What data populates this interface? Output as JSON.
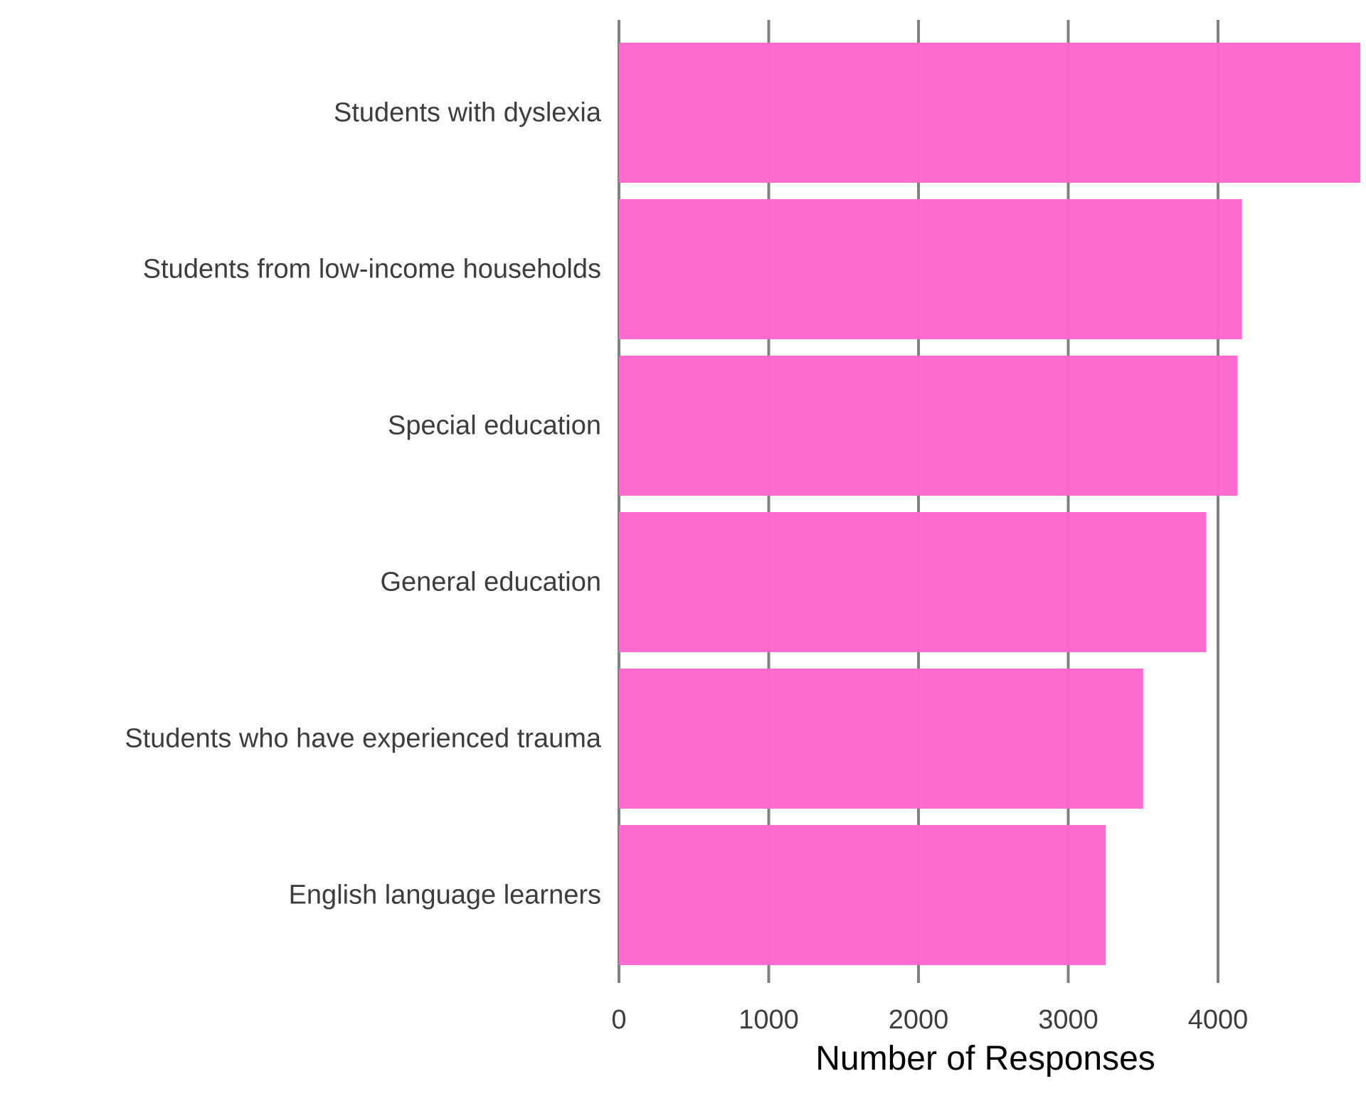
{
  "chart_data": {
    "type": "bar",
    "orientation": "horizontal",
    "categories": [
      "Students with dyslexia",
      "Students from low-income households",
      "Special education",
      "General education",
      "Students who have experienced trauma",
      "English language learners"
    ],
    "values": [
      4950,
      4160,
      4130,
      3920,
      3500,
      3250
    ],
    "xlabel": "Number of Responses",
    "ylabel": "",
    "title": "",
    "xlim": [
      0,
      4950
    ],
    "x_ticks": [
      0,
      1000,
      2000,
      3000,
      4000
    ],
    "x_tick_labels": [
      "0",
      "1000",
      "2000",
      "3000",
      "4000"
    ],
    "grid": "vertical-major",
    "legend": "none",
    "colors": {
      "bar": "#ff66cc",
      "grid": "#808080",
      "tick_text": "#3d3d3d",
      "label_text": "#000000"
    }
  }
}
